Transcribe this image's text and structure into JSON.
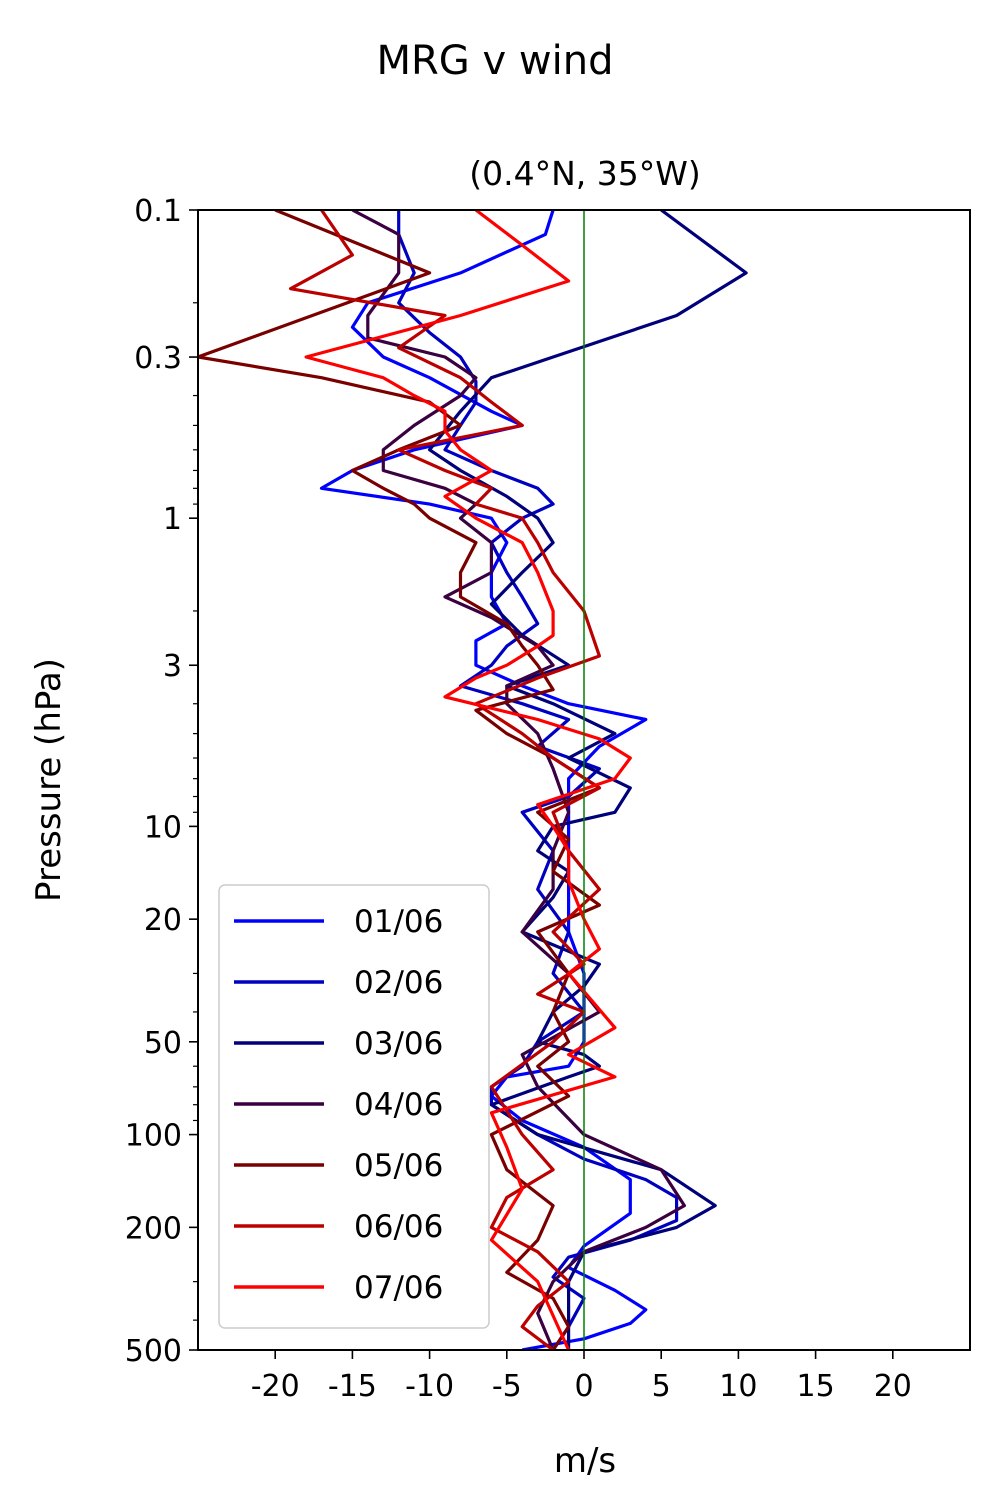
{
  "chart_data": {
    "type": "line",
    "suptitle": "MRG v wind",
    "title": "(0.4°N, 35°W)",
    "xlabel": "m/s",
    "ylabel": "Pressure (hPa)",
    "xlim": [
      -25,
      25
    ],
    "ylim": [
      500,
      0.1
    ],
    "yscale": "log",
    "x_ticks": [
      -20,
      -15,
      -10,
      -5,
      0,
      5,
      10,
      15,
      20
    ],
    "x_tick_labels": [
      "-20",
      "-15",
      "-10",
      "-5",
      "0",
      "5",
      "10",
      "15",
      "20"
    ],
    "y_ticks": [
      0.1,
      0.3,
      1,
      3,
      10,
      20,
      50,
      100,
      200,
      500
    ],
    "y_tick_labels": [
      "0.1",
      "0.3",
      "1",
      "3",
      "10",
      "20",
      "50",
      "100",
      "200",
      "500"
    ],
    "zero_line_color": "#008000",
    "legend_position": "lower-left",
    "series": [
      {
        "name": "01/06",
        "color": "#0000ff",
        "v": [
          -2,
          -2.5,
          -8,
          -14,
          -15,
          -13,
          -10,
          -6,
          -4,
          -11,
          -15,
          -17,
          -10,
          -6,
          -5,
          -6,
          -6,
          -5,
          -7,
          -7,
          -4,
          -1,
          4,
          1,
          -1,
          -1,
          -1,
          -1,
          -1,
          0,
          0,
          0,
          -1,
          -5,
          -6,
          -4,
          0,
          3,
          3,
          0,
          -1,
          2,
          4,
          3,
          0,
          -4
        ],
        "p": [
          0.1,
          0.12,
          0.16,
          0.2,
          0.24,
          0.3,
          0.35,
          0.45,
          0.5,
          0.6,
          0.7,
          0.8,
          0.9,
          1.0,
          1.2,
          1.5,
          1.8,
          2.2,
          2.5,
          3.0,
          3.5,
          4.0,
          4.5,
          5.5,
          7,
          9,
          12,
          16,
          22,
          30,
          40,
          50,
          60,
          65,
          75,
          90,
          110,
          140,
          180,
          230,
          270,
          320,
          370,
          410,
          460,
          500
        ]
      },
      {
        "name": "02/06",
        "color": "#0000c0",
        "v": [
          -12,
          -12,
          -11,
          -12,
          -10,
          -8,
          -7,
          -7,
          -8,
          -9,
          -6,
          -3,
          -2,
          -4,
          -6,
          -5,
          -4,
          -3,
          -5,
          -6,
          -8,
          -4,
          -1,
          -3,
          1,
          -1,
          -4,
          -2,
          -3,
          -1,
          -2,
          0,
          -3,
          -4,
          -6,
          -6,
          -3,
          0,
          4,
          6,
          6,
          3,
          -1,
          -2,
          0,
          -1,
          -2
        ],
        "p": [
          0.1,
          0.12,
          0.16,
          0.2,
          0.25,
          0.3,
          0.36,
          0.42,
          0.5,
          0.6,
          0.7,
          0.8,
          0.9,
          1.0,
          1.2,
          1.5,
          1.8,
          2.2,
          2.6,
          3.0,
          3.5,
          4.0,
          4.5,
          5.5,
          6.5,
          8,
          9,
          12,
          16,
          22,
          30,
          40,
          50,
          60,
          70,
          80,
          100,
          120,
          140,
          160,
          190,
          220,
          250,
          290,
          340,
          420,
          500
        ]
      },
      {
        "name": "03/06",
        "color": "#00007a",
        "v": [
          5,
          10.5,
          6,
          -2,
          -6,
          -8,
          -10,
          -8,
          -5,
          -3,
          -2,
          -4,
          -6,
          -4,
          -1,
          -5,
          -2,
          2,
          -1,
          3,
          2,
          -2,
          -3,
          -1,
          -2,
          -4,
          1,
          0,
          -2,
          -3,
          0,
          1,
          -1,
          -6,
          -3,
          5,
          8.5,
          6,
          0,
          -1,
          -1,
          -1
        ],
        "p": [
          0.1,
          0.16,
          0.22,
          0.3,
          0.35,
          0.45,
          0.6,
          0.7,
          0.85,
          1.0,
          1.2,
          1.5,
          1.9,
          2.4,
          3.0,
          3.5,
          4.0,
          5.0,
          6.0,
          7.5,
          9,
          10,
          12,
          14,
          17,
          22,
          28,
          33,
          40,
          50,
          55,
          60,
          65,
          80,
          100,
          130,
          170,
          200,
          240,
          300,
          400,
          500
        ]
      },
      {
        "name": "04/06",
        "color": "#3a0040",
        "v": [
          -15,
          -12,
          -12,
          -14,
          -14,
          -9,
          -7,
          -8,
          -11,
          -13,
          -13,
          -9,
          -7,
          -8,
          -6,
          -6,
          -9,
          -6,
          -3,
          -2,
          -5,
          -5,
          -3,
          -2,
          -1,
          -2,
          -2,
          -4,
          -1,
          1,
          -4,
          -3,
          0,
          5,
          6.5,
          4,
          0,
          -2,
          -3,
          -2
        ],
        "p": [
          0.1,
          0.12,
          0.16,
          0.22,
          0.26,
          0.3,
          0.35,
          0.4,
          0.5,
          0.6,
          0.7,
          0.8,
          0.9,
          1.0,
          1.2,
          1.5,
          1.8,
          2.1,
          2.6,
          3.0,
          3.5,
          4.0,
          5.0,
          6.5,
          9,
          12,
          16,
          22,
          30,
          40,
          55,
          70,
          100,
          130,
          170,
          200,
          240,
          300,
          380,
          500
        ]
      },
      {
        "name": "05/06",
        "color": "#7a0000",
        "v": [
          -20,
          -10,
          -25,
          -17,
          -10,
          -8,
          -12,
          -15,
          -13,
          -11,
          -10,
          -7,
          -8,
          -8,
          -5,
          -4,
          -3,
          -2,
          -7,
          -5,
          -2,
          1,
          -3,
          -1,
          -2,
          1,
          -3,
          -1,
          -2,
          -1,
          -3,
          -1,
          -6,
          -5,
          -2,
          -3,
          -5,
          -2,
          -1,
          -2
        ],
        "p": [
          0.1,
          0.16,
          0.3,
          0.35,
          0.42,
          0.5,
          0.6,
          0.7,
          0.8,
          0.9,
          1.0,
          1.2,
          1.5,
          1.8,
          2.2,
          2.6,
          3.0,
          3.6,
          4.2,
          5.0,
          6.0,
          7.5,
          9,
          11,
          14,
          18,
          22,
          30,
          40,
          50,
          60,
          75,
          100,
          130,
          170,
          220,
          280,
          340,
          420,
          500
        ]
      },
      {
        "name": "06/06",
        "color": "#bb0000",
        "v": [
          -17,
          -15,
          -19,
          -9,
          -12,
          -8,
          -6,
          -4,
          -12,
          -9,
          -6,
          -7,
          -4,
          -3,
          -2,
          0,
          1,
          -3,
          -7,
          -4,
          -2,
          1,
          -2,
          -1,
          1,
          -2,
          0,
          -3,
          0,
          -2,
          -6,
          -4,
          -2,
          -5,
          -6,
          -3,
          -1,
          -3,
          -4,
          -2
        ],
        "p": [
          0.1,
          0.14,
          0.18,
          0.22,
          0.28,
          0.35,
          0.42,
          0.5,
          0.6,
          0.7,
          0.8,
          0.9,
          1.0,
          1.2,
          1.5,
          2.0,
          2.8,
          3.3,
          4.0,
          5.0,
          6.0,
          7.5,
          9,
          12,
          16,
          22,
          28,
          35,
          40,
          50,
          70,
          100,
          130,
          160,
          200,
          240,
          300,
          360,
          420,
          500
        ]
      },
      {
        "name": "07/06",
        "color": "#ff0000",
        "v": [
          -7,
          -4,
          -1,
          -8,
          -18,
          -13,
          -11,
          -9,
          -9,
          -8,
          -6,
          -9,
          -7,
          -4,
          -3,
          -2,
          -2,
          -3,
          -5,
          -7,
          -9,
          -3,
          1,
          3,
          2,
          -3,
          -2,
          -1,
          -1,
          0,
          1,
          -1,
          2,
          -1,
          2,
          -6,
          -5,
          -4,
          -6,
          -3,
          -1
        ],
        "p": [
          0.1,
          0.13,
          0.17,
          0.22,
          0.3,
          0.35,
          0.4,
          0.45,
          0.52,
          0.6,
          0.7,
          0.85,
          1.0,
          1.2,
          1.5,
          2.0,
          2.4,
          2.6,
          3.0,
          3.3,
          3.8,
          4.5,
          5.2,
          6.0,
          7.0,
          8.5,
          10,
          12,
          15,
          20,
          25,
          30,
          45,
          55,
          65,
          85,
          110,
          150,
          220,
          300,
          500
        ]
      }
    ]
  }
}
